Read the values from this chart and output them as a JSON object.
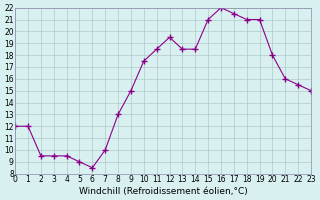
{
  "hours": [
    0,
    1,
    2,
    3,
    4,
    5,
    6,
    7,
    8,
    9,
    10,
    11,
    12,
    13,
    14,
    15,
    16,
    17,
    18,
    19,
    20,
    21,
    22,
    23
  ],
  "values": [
    12,
    12,
    9.5,
    9.5,
    9.5,
    9,
    8.5,
    10,
    13,
    15,
    17.5,
    18.5,
    19.5,
    18.5,
    18.5,
    21,
    22,
    21.5,
    21,
    21,
    18,
    16,
    15.5,
    15
  ],
  "line_color": "#8B008B",
  "marker": "+",
  "bg_color": "#d8f0f0",
  "grid_color": "#b0c8c8",
  "xlabel": "Windchill (Refroidissement éolien,°C)",
  "ylim": [
    8,
    22
  ],
  "xlim": [
    0,
    23
  ],
  "yticks": [
    8,
    9,
    10,
    11,
    12,
    13,
    14,
    15,
    16,
    17,
    18,
    19,
    20,
    21,
    22
  ],
  "xticks": [
    0,
    1,
    2,
    3,
    4,
    5,
    6,
    7,
    8,
    9,
    10,
    11,
    12,
    13,
    14,
    15,
    16,
    17,
    18,
    19,
    20,
    21,
    22,
    23
  ],
  "tick_fontsize": 5.5,
  "xlabel_fontsize": 6.5
}
